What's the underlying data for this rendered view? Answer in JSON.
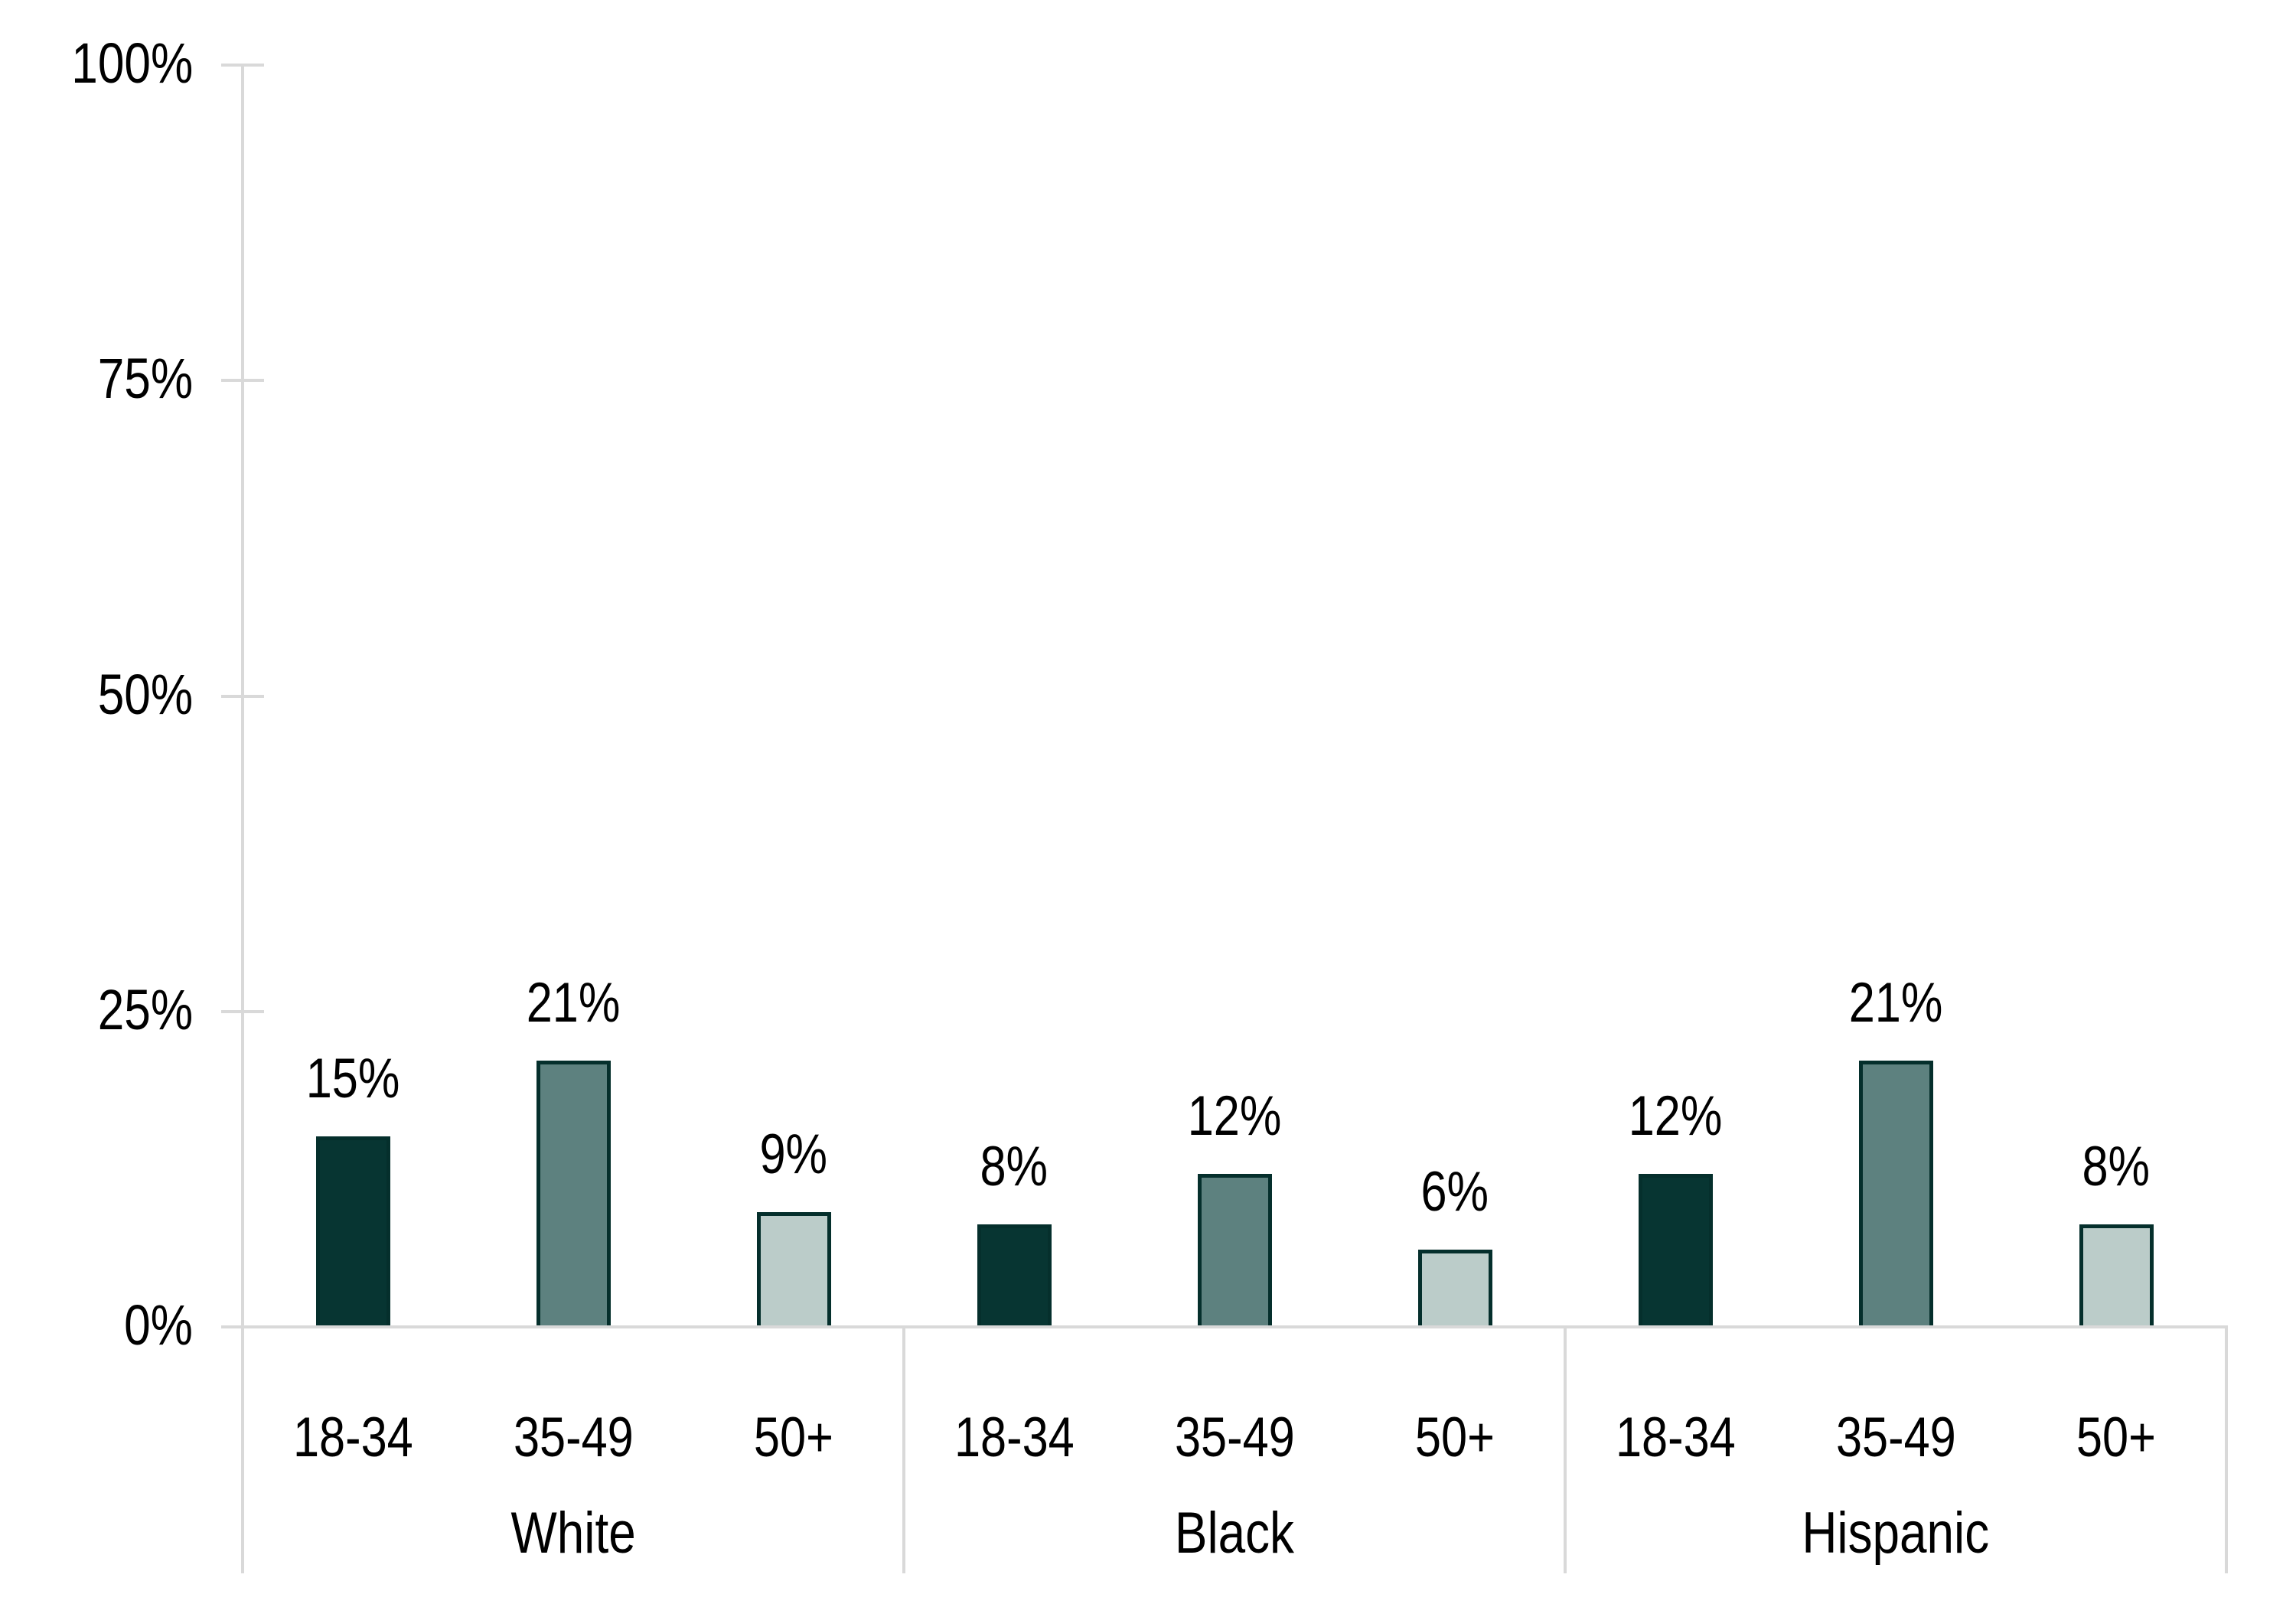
{
  "chart_data": {
    "type": "bar",
    "ylim": [
      0,
      100
    ],
    "yticks": [
      0,
      25,
      50,
      75,
      100
    ],
    "ytick_labels": [
      "0%",
      "25%",
      "50%",
      "75%",
      "100%"
    ],
    "groups": [
      {
        "label": "White",
        "categories": [
          "18-34",
          "35-49",
          "50+"
        ],
        "values": [
          15,
          21,
          9
        ],
        "value_labels": [
          "15%",
          "21%",
          "9%"
        ]
      },
      {
        "label": "Black",
        "categories": [
          "18-34",
          "35-49",
          "50+"
        ],
        "values": [
          8,
          12,
          6
        ],
        "value_labels": [
          "8%",
          "12%",
          "6%"
        ]
      },
      {
        "label": "Hispanic",
        "categories": [
          "18-34",
          "35-49",
          "50+"
        ],
        "values": [
          12,
          21,
          8
        ],
        "value_labels": [
          "12%",
          "21%",
          "8%"
        ]
      }
    ],
    "series_colors": {
      "18-34": "#073532",
      "35-49": "#5d817f",
      "50+": "#bbccc9"
    },
    "bar_border_color": "#052f2c",
    "axis_color": "#d9d9d9",
    "text_color": "#000000",
    "grid": "off",
    "legend": "none"
  }
}
